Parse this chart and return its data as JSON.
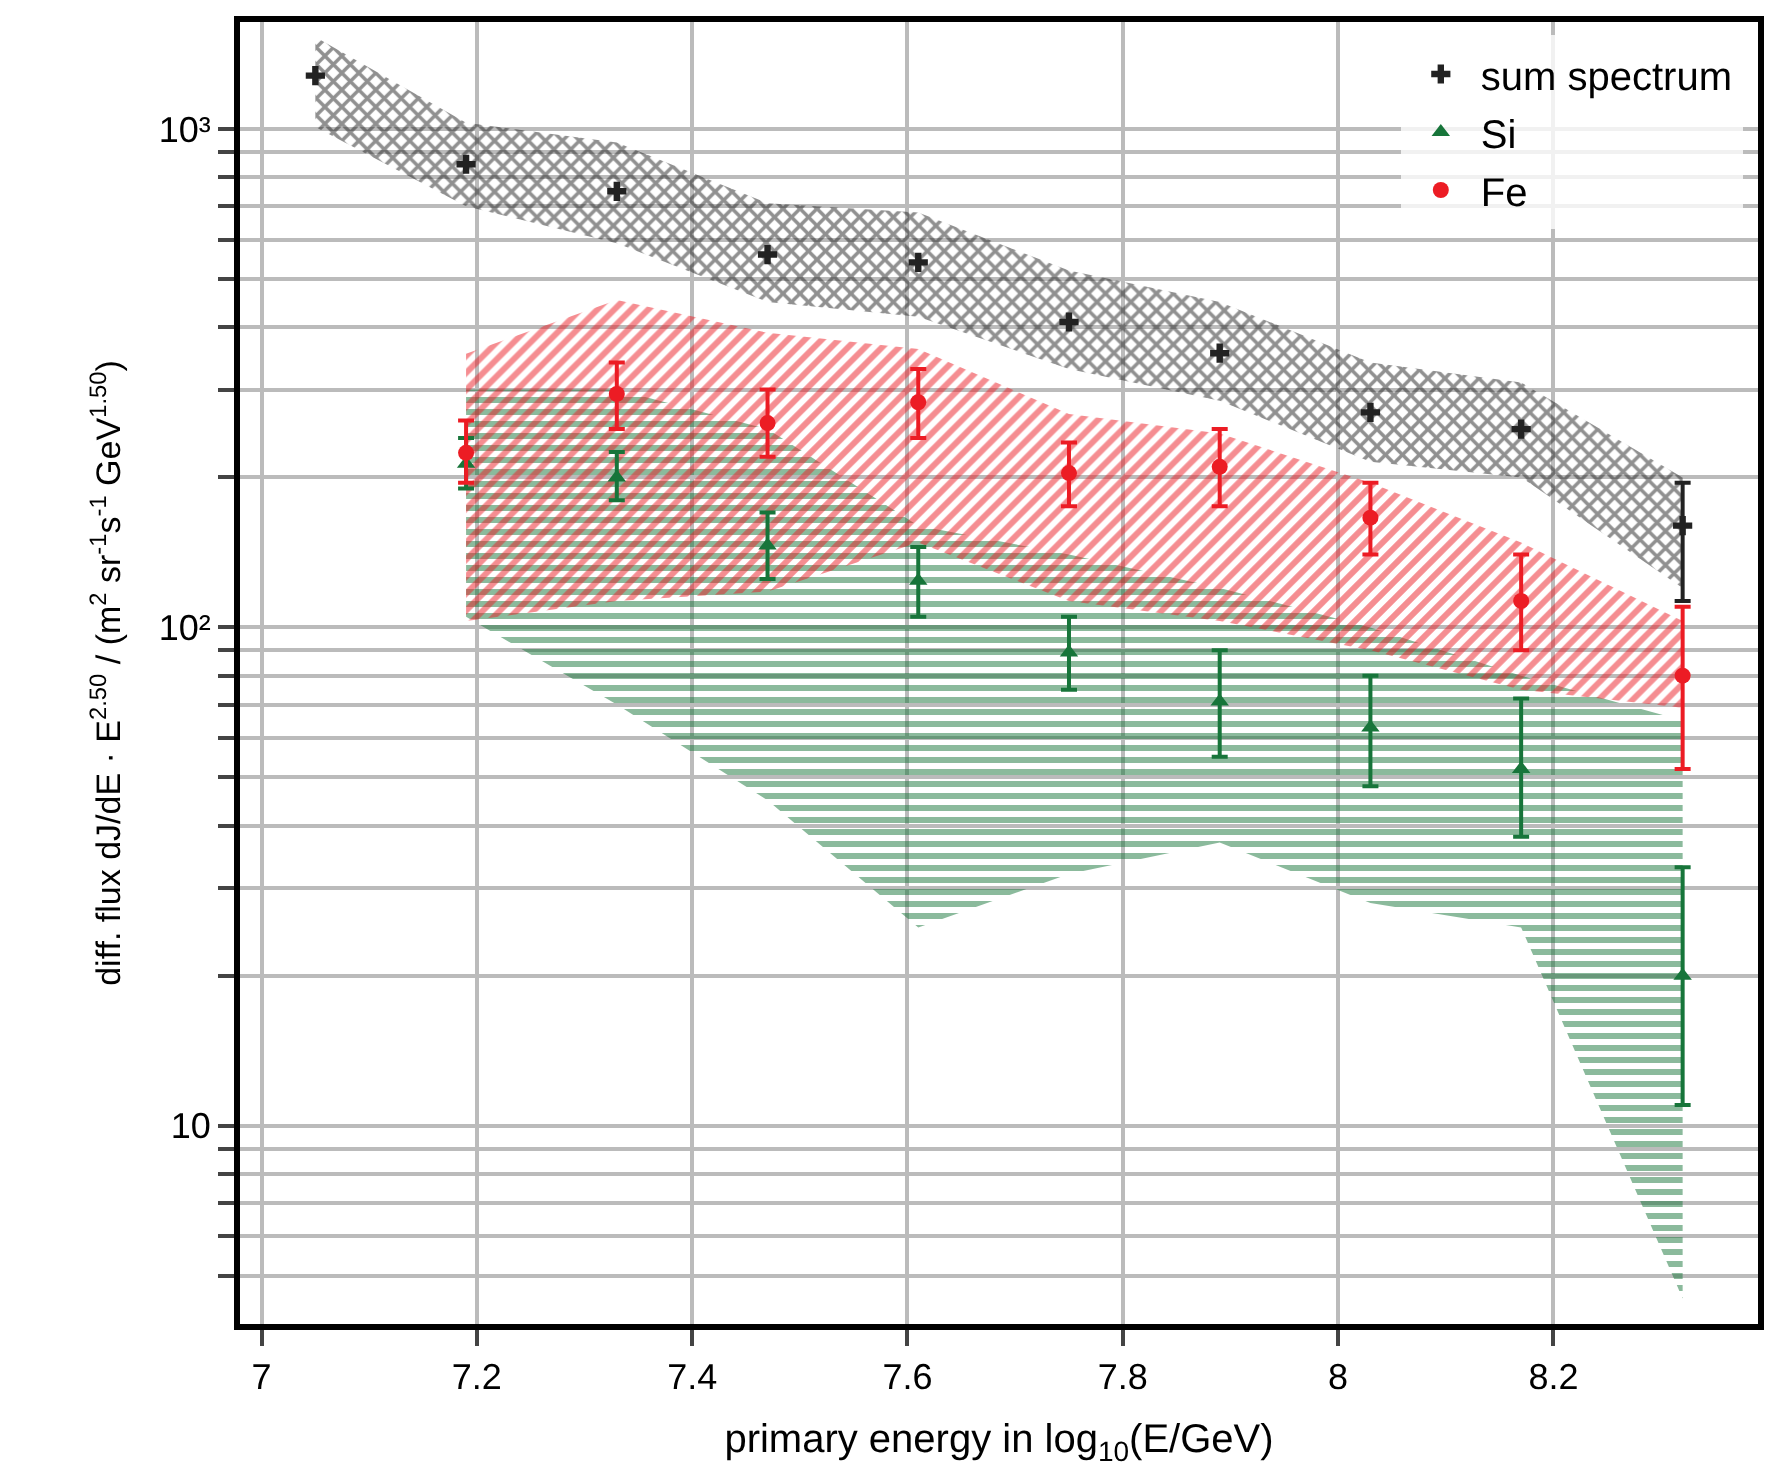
{
  "chart_data": {
    "type": "scatter",
    "xlabel": "primary energy in log$_{10}$(E/GeV)",
    "ylabel": "diff. flux dJ/dE · E$^{2.50}$ / (m$^{2}$ sr$^{-1}$s$^{-1}$ GeV$^{1.50}$)",
    "xlim": [
      6.98,
      8.39
    ],
    "xticks": [
      7,
      7.2,
      7.4,
      7.6,
      7.8,
      8,
      8.2
    ],
    "ylim": [
      4,
      1640
    ],
    "yticks": [
      {
        "value": 5,
        "label": null
      },
      {
        "value": 6,
        "label": null
      },
      {
        "value": 7,
        "label": null
      },
      {
        "value": 8,
        "label": null
      },
      {
        "value": 9,
        "label": null
      },
      10,
      {
        "value": 20,
        "label": null
      },
      {
        "value": 30,
        "label": null
      },
      {
        "value": 40,
        "label": null
      },
      {
        "value": 50,
        "label": null
      },
      {
        "value": 60,
        "label": null
      },
      {
        "value": 70,
        "label": null
      },
      {
        "value": 80,
        "label": null
      },
      {
        "value": 90,
        "label": null
      },
      {
        "value": 100,
        "label": "10²"
      },
      {
        "value": 200,
        "label": null
      },
      {
        "value": 300,
        "label": null
      },
      {
        "value": 400,
        "label": null
      },
      {
        "value": 500,
        "label": null
      },
      {
        "value": 600,
        "label": null
      },
      {
        "value": 700,
        "label": null
      },
      {
        "value": 800,
        "label": null
      },
      {
        "value": 900,
        "label": null
      },
      {
        "value": 1000,
        "label": "10³"
      }
    ],
    "log": "y",
    "grid": true,
    "legend": "top right",
    "series": [
      {
        "name": "sum spectrum",
        "color": "#222222",
        "marker": "cross",
        "x": [
          7.05,
          7.19,
          7.33,
          7.47,
          7.61,
          7.75,
          7.89,
          8.03,
          8.17,
          8.32
        ],
        "values": [
          1280,
          850,
          750,
          560,
          540,
          410,
          355,
          270,
          250,
          160
        ],
        "errors": [
          null,
          null,
          null,
          null,
          null,
          null,
          null,
          null,
          null,
          [
            113,
            195
          ]
        ],
        "lower": [
          1010,
          700,
          590,
          450,
          420,
          330,
          285,
          215,
          200,
          120
        ],
        "upper": [
          1530,
          1030,
          940,
          710,
          680,
          520,
          450,
          340,
          310,
          200
        ]
      },
      {
        "name": "Si",
        "color": "#17753a",
        "marker": "triangle",
        "x": [
          7.19,
          7.33,
          7.47,
          7.61,
          7.75,
          7.89,
          8.03,
          8.17,
          8.32
        ],
        "values": [
          213,
          200,
          146,
          124,
          89,
          71,
          63,
          52,
          20
        ],
        "errors": [
          [
            190,
            240
          ],
          [
            180,
            225
          ],
          [
            125,
            170
          ],
          [
            105,
            145
          ],
          [
            75,
            105
          ],
          [
            55,
            90
          ],
          [
            48,
            80
          ],
          [
            38,
            72
          ],
          [
            11,
            33
          ]
        ],
        "lower": [
          105,
          70,
          45,
          25,
          32,
          37,
          28,
          25,
          4.5
        ],
        "upper": [
          300,
          300,
          250,
          160,
          140,
          120,
          100,
          80,
          65
        ]
      },
      {
        "name": "Fe",
        "color": "#ec1c24",
        "marker": "circle",
        "x": [
          7.19,
          7.33,
          7.47,
          7.61,
          7.75,
          7.89,
          8.03,
          8.17,
          8.32
        ],
        "values": [
          224,
          294,
          257,
          283,
          204,
          210,
          166,
          113,
          80
        ],
        "errors": [
          [
            195,
            260
          ],
          [
            250,
            340
          ],
          [
            220,
            300
          ],
          [
            240,
            330
          ],
          [
            175,
            235
          ],
          [
            175,
            250
          ],
          [
            140,
            195
          ],
          [
            90,
            140
          ],
          [
            52,
            110
          ]
        ],
        "lower": [
          103,
          113,
          118,
          148,
          113,
          103,
          90,
          75,
          69
        ],
        "upper": [
          354,
          454,
          390,
          362,
          268,
          245,
          195,
          148,
          103
        ]
      }
    ]
  }
}
